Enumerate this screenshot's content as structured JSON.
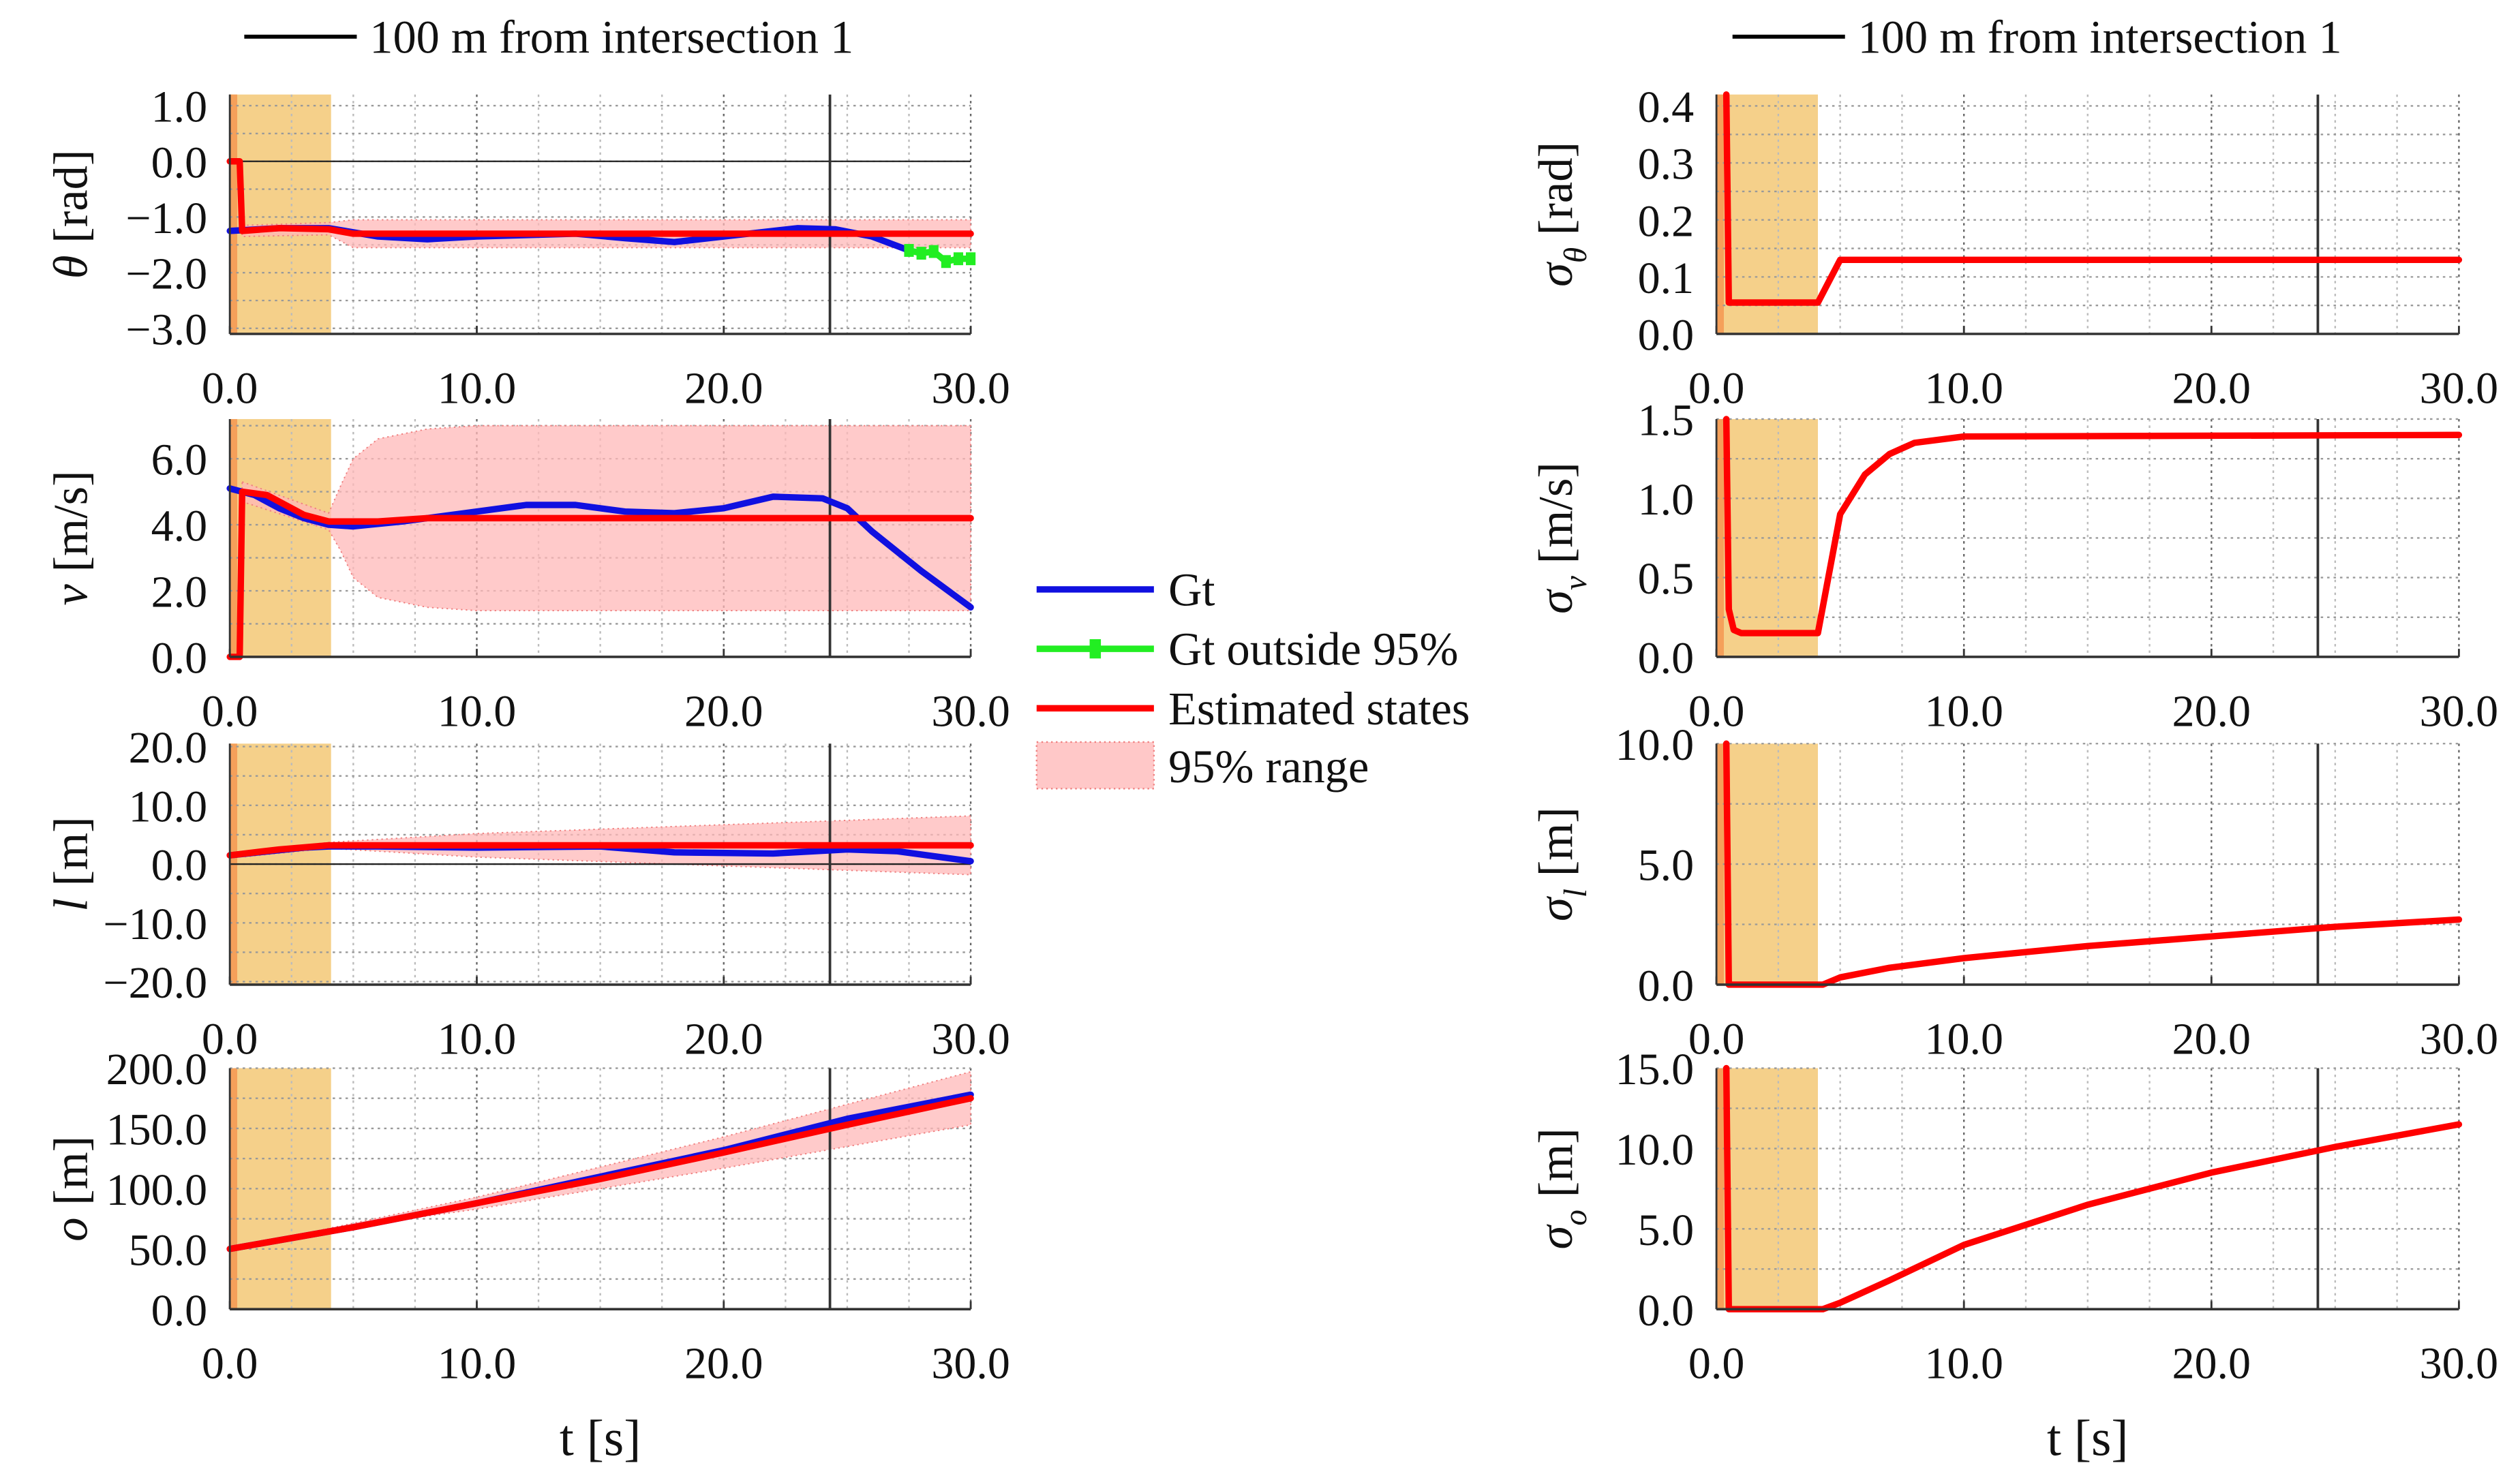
{
  "legend_top": {
    "label": "100 m from intersection 1",
    "color": "#000000"
  },
  "legend": [
    {
      "label": "Gt",
      "color": "#1010e0",
      "kind": "line"
    },
    {
      "label": "Gt outside 95%",
      "color": "#22ee22",
      "kind": "marker-line"
    },
    {
      "label": "Estimated states",
      "color": "#ff0000",
      "kind": "line"
    },
    {
      "label": "95% range",
      "color": "#ffc8c8",
      "kind": "patch"
    }
  ],
  "chart_data": [
    {
      "type": "line",
      "id": "theta",
      "column": "left",
      "ylabel": {
        "symbol": "θ",
        "sub": "",
        "unit": "[rad]"
      },
      "xlabel": "",
      "xlim": [
        0,
        30
      ],
      "ylim": [
        -3.1,
        1.2
      ],
      "xticks": [
        "0.0",
        "10.0",
        "20.0",
        "30.0"
      ],
      "xtick_values": [
        0,
        10,
        20,
        30
      ],
      "yticks": [
        "1.0",
        "0.0",
        "−1.0",
        "−2.0",
        "−3.0"
      ],
      "ytick_values": [
        1,
        0,
        -1,
        -2,
        -3
      ],
      "zero_line": true,
      "gt": [
        [
          0,
          -1.25
        ],
        [
          2,
          -1.2
        ],
        [
          4,
          -1.2
        ],
        [
          6,
          -1.35
        ],
        [
          8,
          -1.4
        ],
        [
          10,
          -1.35
        ],
        [
          14,
          -1.3
        ],
        [
          16,
          -1.38
        ],
        [
          18,
          -1.45
        ],
        [
          20,
          -1.35
        ],
        [
          23,
          -1.2
        ],
        [
          24.5,
          -1.22
        ],
        [
          26,
          -1.35
        ],
        [
          27.5,
          -1.6
        ]
      ],
      "gt_outside": [
        [
          27.5,
          -1.6
        ],
        [
          28,
          -1.65
        ],
        [
          28.5,
          -1.62
        ],
        [
          29,
          -1.8
        ],
        [
          29.5,
          -1.75
        ],
        [
          30,
          -1.75
        ]
      ],
      "est": [
        [
          0,
          0
        ],
        [
          0.4,
          0
        ],
        [
          0.5,
          -1.25
        ],
        [
          2,
          -1.2
        ],
        [
          4,
          -1.22
        ],
        [
          5,
          -1.3
        ],
        [
          30,
          -1.3
        ]
      ],
      "band": [
        [
          0.5,
          -1.15,
          -1.35
        ],
        [
          4,
          -1.1,
          -1.32
        ],
        [
          5,
          -1.05,
          -1.55
        ],
        [
          30,
          -1.05,
          -1.55
        ]
      ]
    },
    {
      "type": "line",
      "id": "v",
      "column": "left",
      "ylabel": {
        "symbol": "v",
        "sub": "",
        "unit": "[m/s]"
      },
      "xlabel": "",
      "xlim": [
        0,
        30
      ],
      "ylim": [
        0,
        7.2
      ],
      "xticks": [
        "0.0",
        "10.0",
        "20.0",
        "30.0"
      ],
      "xtick_values": [
        0,
        10,
        20,
        30
      ],
      "yticks": [
        "6.0",
        "4.0",
        "2.0",
        "0.0"
      ],
      "ytick_values": [
        6,
        4,
        2,
        0
      ],
      "zero_line": false,
      "gt": [
        [
          0,
          5.1
        ],
        [
          1,
          4.9
        ],
        [
          2,
          4.5
        ],
        [
          3,
          4.2
        ],
        [
          4,
          4.0
        ],
        [
          5,
          3.95
        ],
        [
          7,
          4.1
        ],
        [
          10,
          4.4
        ],
        [
          12,
          4.6
        ],
        [
          14,
          4.6
        ],
        [
          16,
          4.4
        ],
        [
          18,
          4.35
        ],
        [
          20,
          4.5
        ],
        [
          22,
          4.85
        ],
        [
          24,
          4.8
        ],
        [
          25,
          4.5
        ],
        [
          26,
          3.8
        ],
        [
          28,
          2.6
        ],
        [
          30,
          1.5
        ]
      ],
      "gt_outside": [],
      "est": [
        [
          0,
          0
        ],
        [
          0.4,
          0
        ],
        [
          0.5,
          5.0
        ],
        [
          1.5,
          4.9
        ],
        [
          3,
          4.3
        ],
        [
          4,
          4.1
        ],
        [
          6,
          4.1
        ],
        [
          8,
          4.2
        ],
        [
          30,
          4.2
        ]
      ],
      "band": [
        [
          0.5,
          5.3,
          4.7
        ],
        [
          4,
          4.35,
          3.85
        ],
        [
          4.5,
          5.2,
          3.2
        ],
        [
          5,
          6.0,
          2.4
        ],
        [
          6,
          6.6,
          1.8
        ],
        [
          8,
          6.9,
          1.5
        ],
        [
          10,
          7.0,
          1.4
        ],
        [
          30,
          7.0,
          1.4
        ]
      ]
    },
    {
      "type": "line",
      "id": "l",
      "column": "left",
      "ylabel": {
        "symbol": "l",
        "sub": "",
        "unit": "[m]"
      },
      "xlabel": "",
      "xlim": [
        0,
        30
      ],
      "ylim": [
        -20.5,
        20.5
      ],
      "xticks": [
        "0.0",
        "10.0",
        "20.0",
        "30.0"
      ],
      "xtick_values": [
        0,
        10,
        20,
        30
      ],
      "yticks": [
        "20.0",
        "10.0",
        "0.0",
        "−10.0",
        "−20.0"
      ],
      "ytick_values": [
        20,
        10,
        0,
        -10,
        -20
      ],
      "zero_line": true,
      "gt": [
        [
          0,
          1.5
        ],
        [
          3,
          2.8
        ],
        [
          4,
          3
        ],
        [
          6,
          3
        ],
        [
          10,
          2.8
        ],
        [
          15,
          3
        ],
        [
          18,
          2
        ],
        [
          22,
          1.8
        ],
        [
          25,
          2.5
        ],
        [
          27,
          2.2
        ],
        [
          30,
          0.5
        ]
      ],
      "gt_outside": [],
      "est": [
        [
          0,
          1.5
        ],
        [
          2,
          2.5
        ],
        [
          4,
          3.2
        ],
        [
          30,
          3.2
        ]
      ],
      "band": [
        [
          0.5,
          2.0,
          1.2
        ],
        [
          4,
          3.7,
          2.7
        ],
        [
          10,
          5.2,
          1.2
        ],
        [
          20,
          6.7,
          -0.3
        ],
        [
          30,
          8.2,
          -1.8
        ]
      ]
    },
    {
      "type": "line",
      "id": "o",
      "column": "left",
      "ylabel": {
        "symbol": "o",
        "sub": "",
        "unit": "[m]"
      },
      "xlabel": "t [s]",
      "xlim": [
        0,
        30
      ],
      "ylim": [
        0,
        200
      ],
      "xticks": [
        "0.0",
        "10.0",
        "20.0",
        "30.0"
      ],
      "xtick_values": [
        0,
        10,
        20,
        30
      ],
      "yticks": [
        "200.0",
        "150.0",
        "100.0",
        "50.0",
        "0.0"
      ],
      "ytick_values": [
        200,
        150,
        100,
        50,
        0
      ],
      "zero_line": false,
      "gt": [
        [
          0,
          50
        ],
        [
          5,
          68
        ],
        [
          10,
          88
        ],
        [
          15,
          110
        ],
        [
          20,
          132
        ],
        [
          25,
          158
        ],
        [
          30,
          178
        ]
      ],
      "gt_outside": [],
      "est": [
        [
          0,
          50
        ],
        [
          5,
          68
        ],
        [
          10,
          88
        ],
        [
          15,
          108
        ],
        [
          20,
          130
        ],
        [
          25,
          153
        ],
        [
          30,
          175
        ]
      ],
      "band": [
        [
          0.5,
          52,
          51
        ],
        [
          4,
          67,
          66
        ],
        [
          10,
          93,
          83
        ],
        [
          20,
          143,
          117
        ],
        [
          30,
          197,
          153
        ]
      ]
    },
    {
      "type": "line",
      "id": "sigma_theta",
      "column": "right",
      "ylabel": {
        "symbol": "σ",
        "sub": "θ",
        "unit": "[rad]"
      },
      "xlabel": "",
      "xlim": [
        0,
        30
      ],
      "ylim": [
        0,
        0.42
      ],
      "xticks": [
        "0.0",
        "10.0",
        "20.0",
        "30.0"
      ],
      "xtick_values": [
        0,
        10,
        20,
        30
      ],
      "yticks": [
        "0.4",
        "0.3",
        "0.2",
        "0.1",
        "0.0"
      ],
      "ytick_values": [
        0.4,
        0.3,
        0.2,
        0.1,
        0
      ],
      "zero_line": false,
      "est": [
        [
          0.4,
          0.42
        ],
        [
          0.5,
          0.055
        ],
        [
          4.1,
          0.055
        ],
        [
          5,
          0.13
        ],
        [
          30,
          0.13
        ]
      ]
    },
    {
      "type": "line",
      "id": "sigma_v",
      "column": "right",
      "ylabel": {
        "symbol": "σ",
        "sub": "v",
        "unit": "[m/s]"
      },
      "xlabel": "",
      "xlim": [
        0,
        30
      ],
      "ylim": [
        0,
        1.5
      ],
      "xticks": [
        "0.0",
        "10.0",
        "20.0",
        "30.0"
      ],
      "xtick_values": [
        0,
        10,
        20,
        30
      ],
      "yticks": [
        "1.5",
        "1.0",
        "0.5",
        "0.0"
      ],
      "ytick_values": [
        1.5,
        1,
        0.5,
        0
      ],
      "zero_line": false,
      "est": [
        [
          0.4,
          1.5
        ],
        [
          0.5,
          0.3
        ],
        [
          0.7,
          0.17
        ],
        [
          1,
          0.15
        ],
        [
          4.1,
          0.15
        ],
        [
          5,
          0.9
        ],
        [
          6,
          1.15
        ],
        [
          7,
          1.28
        ],
        [
          8,
          1.35
        ],
        [
          10,
          1.39
        ],
        [
          30,
          1.4
        ]
      ]
    },
    {
      "type": "line",
      "id": "sigma_l",
      "column": "right",
      "ylabel": {
        "symbol": "σ",
        "sub": "l",
        "unit": "[m]"
      },
      "xlabel": "",
      "xlim": [
        0,
        30
      ],
      "ylim": [
        0,
        10
      ],
      "xticks": [
        "0.0",
        "10.0",
        "20.0",
        "30.0"
      ],
      "xtick_values": [
        0,
        10,
        20,
        30
      ],
      "yticks": [
        "10.0",
        "5.0",
        "0.0"
      ],
      "ytick_values": [
        10,
        5,
        0
      ],
      "zero_line": false,
      "est": [
        [
          0.4,
          10
        ],
        [
          0.5,
          0
        ],
        [
          4.3,
          0
        ],
        [
          5,
          0.3
        ],
        [
          7,
          0.7
        ],
        [
          10,
          1.1
        ],
        [
          15,
          1.6
        ],
        [
          20,
          2.0
        ],
        [
          25,
          2.4
        ],
        [
          30,
          2.7
        ]
      ]
    },
    {
      "type": "line",
      "id": "sigma_o",
      "column": "right",
      "ylabel": {
        "symbol": "σ",
        "sub": "o",
        "unit": "[m]"
      },
      "xlabel": "t [s]",
      "xlim": [
        0,
        30
      ],
      "ylim": [
        0,
        15
      ],
      "xticks": [
        "0.0",
        "10.0",
        "20.0",
        "30.0"
      ],
      "xtick_values": [
        0,
        10,
        20,
        30
      ],
      "yticks": [
        "15.0",
        "10.0",
        "5.0",
        "0.0"
      ],
      "ytick_values": [
        15,
        10,
        5,
        0
      ],
      "zero_line": false,
      "est": [
        [
          0.4,
          15
        ],
        [
          0.5,
          0
        ],
        [
          4.3,
          0
        ],
        [
          5,
          0.4
        ],
        [
          7,
          1.8
        ],
        [
          10,
          4.0
        ],
        [
          15,
          6.5
        ],
        [
          20,
          8.5
        ],
        [
          25,
          10.1
        ],
        [
          30,
          11.5
        ]
      ]
    }
  ],
  "shaded_regions": {
    "init_end": 0.3,
    "warmup_end": 4.1,
    "init_color": "#f5a05a",
    "warmup_color": "#f5d08a"
  },
  "marker_line_t": 24.3
}
